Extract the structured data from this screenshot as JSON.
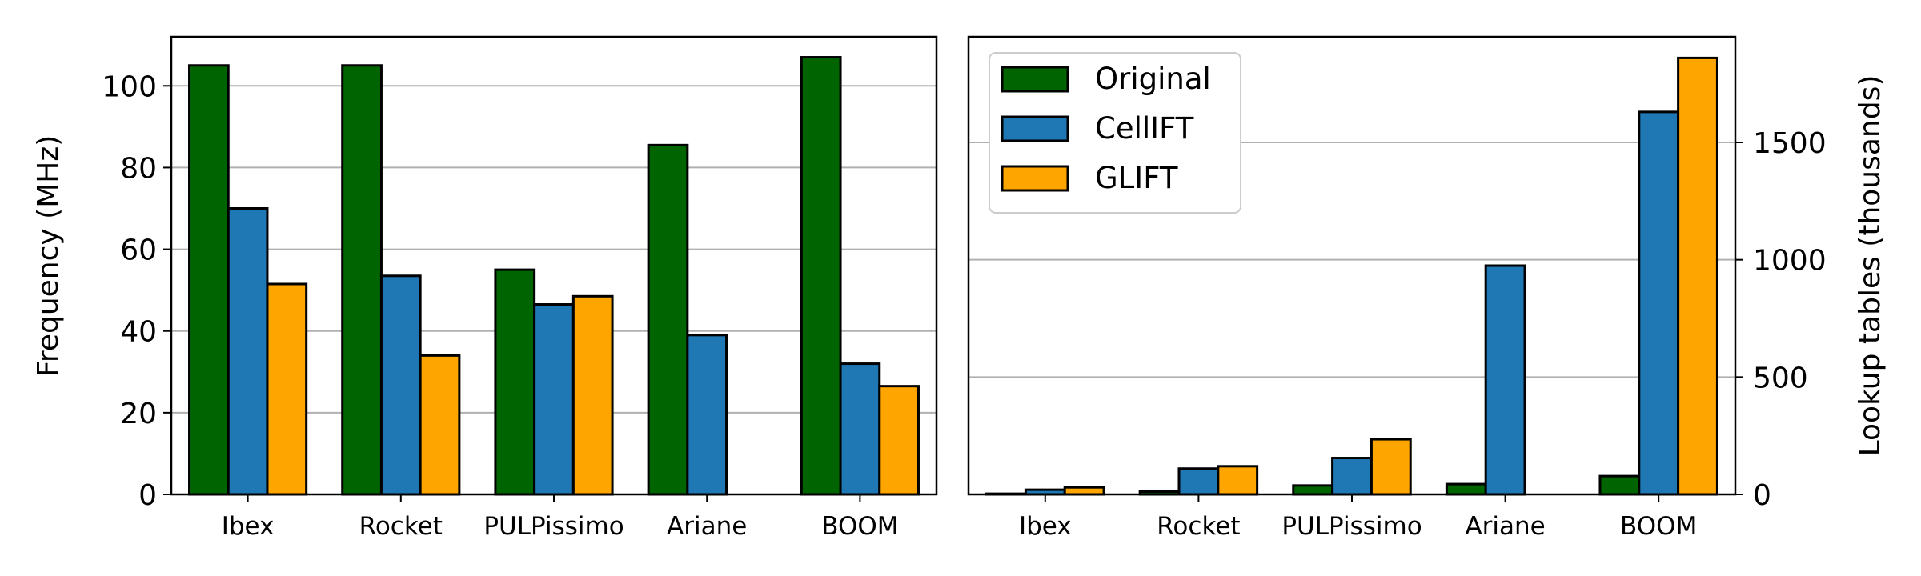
{
  "chart_data": [
    {
      "type": "bar",
      "categories": [
        "Ibex",
        "Rocket",
        "PULPissimo",
        "Ariane",
        "BOOM"
      ],
      "series": [
        {
          "name": "Original",
          "values": [
            105,
            105,
            55,
            85.5,
            107
          ]
        },
        {
          "name": "CellIFT",
          "values": [
            70,
            53.5,
            46.5,
            39,
            32
          ]
        },
        {
          "name": "GLIFT",
          "values": [
            51.5,
            34,
            48.5,
            null,
            26.5
          ]
        }
      ],
      "ylabel": "Frequency (MHz)",
      "ylim": [
        0,
        112
      ],
      "yticks": [
        0,
        20,
        40,
        60,
        80,
        100
      ],
      "grid": true,
      "y_axis_side": "left"
    },
    {
      "type": "bar",
      "categories": [
        "Ibex",
        "Rocket",
        "PULPissimo",
        "Ariane",
        "BOOM"
      ],
      "series": [
        {
          "name": "Original",
          "values": [
            3,
            12,
            38,
            44,
            78
          ]
        },
        {
          "name": "CellIFT",
          "values": [
            20,
            110,
            155,
            975,
            1630
          ]
        },
        {
          "name": "GLIFT",
          "values": [
            30,
            120,
            235,
            null,
            1860
          ]
        }
      ],
      "ylabel": "Lookup tables (thousands)",
      "ylim": [
        0,
        1950
      ],
      "yticks": [
        0,
        500,
        1000,
        1500
      ],
      "grid": true,
      "y_axis_side": "right",
      "legend_position": "upper-left"
    }
  ],
  "colors": {
    "Original": "#006400",
    "CellIFT": "#1f77b4",
    "GLIFT": "#ffa500",
    "grid": "#b0b0b0"
  }
}
